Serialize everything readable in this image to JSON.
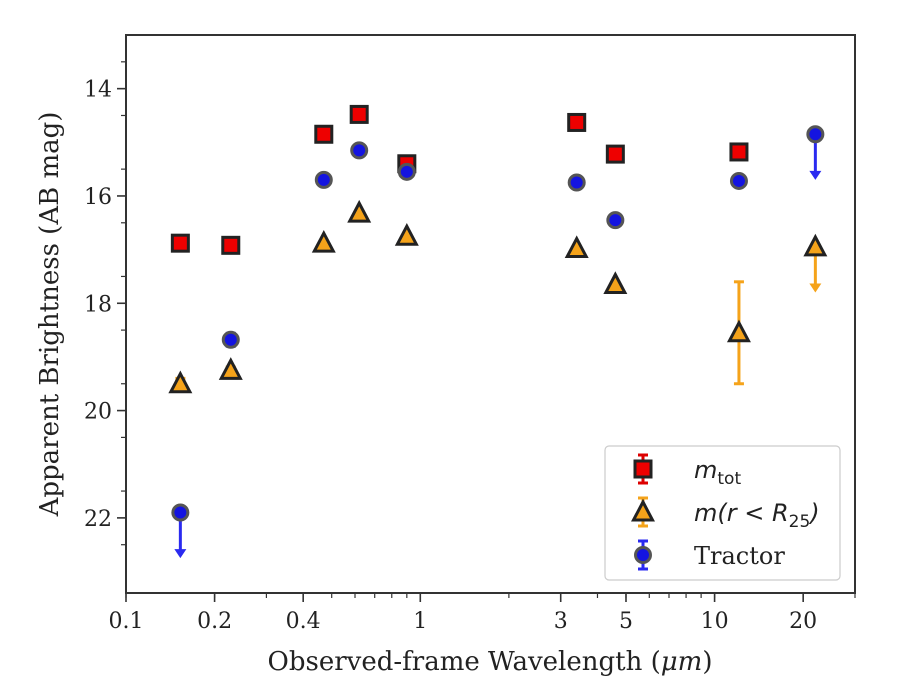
{
  "chart_data": {
    "type": "scatter",
    "xlabel_prefix": "Observed-frame Wavelength (",
    "xlabel_unit": "μm",
    "xlabel_suffix": ")",
    "ylabel": "Apparent Brightness (AB mag)",
    "x_scale": "log",
    "xlim": [
      0.1,
      30
    ],
    "ylim": [
      23.4,
      13
    ],
    "y_inverted": true,
    "x_ticks": [
      0.1,
      0.2,
      0.4,
      1,
      3,
      5,
      10,
      20
    ],
    "x_tick_labels": [
      "0.1",
      "0.2",
      "0.4",
      "1",
      "3",
      "5",
      "10",
      "20"
    ],
    "y_ticks": [
      14,
      16,
      18,
      20,
      22
    ],
    "y_tick_labels": [
      "14",
      "16",
      "18",
      "20",
      "22"
    ],
    "grid": false,
    "legend_position": "lower-right",
    "series": [
      {
        "key": "mtot",
        "label_main": "m",
        "label_sub": "tot",
        "label_tail": "",
        "marker": "square",
        "color": "#ee0000",
        "errcolor": "#dd0000",
        "points": [
          {
            "x": 0.153,
            "y": 16.88,
            "err": 0.06
          },
          {
            "x": 0.227,
            "y": 16.92,
            "err": 0.06
          },
          {
            "x": 0.47,
            "y": 14.85,
            "err": 0.03
          },
          {
            "x": 0.62,
            "y": 14.48,
            "err": 0.03
          },
          {
            "x": 0.9,
            "y": 15.4,
            "err": 0.08
          },
          {
            "x": 3.4,
            "y": 14.63,
            "err": 0.03
          },
          {
            "x": 4.6,
            "y": 15.22,
            "err": 0.03
          },
          {
            "x": 12.1,
            "y": 15.18,
            "err": 0.05
          }
        ]
      },
      {
        "key": "mr25",
        "label_main": "m(r < R",
        "label_sub": "25",
        "label_tail": ")",
        "marker": "triangle",
        "color": "#f5a31a",
        "errcolor": "#f5a31a",
        "points": [
          {
            "x": 0.153,
            "y": 19.5,
            "err": 0.1
          },
          {
            "x": 0.227,
            "y": 19.25,
            "err": 0.06
          },
          {
            "x": 0.47,
            "y": 16.88,
            "err": 0.03
          },
          {
            "x": 0.62,
            "y": 16.32,
            "err": 0.03
          },
          {
            "x": 0.9,
            "y": 16.75,
            "err": 0.03
          },
          {
            "x": 3.4,
            "y": 16.98,
            "err": 0.03
          },
          {
            "x": 4.6,
            "y": 17.65,
            "err": 0.03
          },
          {
            "x": 12.1,
            "y": 18.55,
            "err": 0.95
          },
          {
            "x": 22.0,
            "y": 16.95,
            "upper_limit": true,
            "limit_to": 17.8
          }
        ]
      },
      {
        "key": "tractor",
        "label_main": "Tractor",
        "label_sub": "",
        "label_tail": "",
        "marker": "circle",
        "color": "#1414e0",
        "errcolor": "#2a2af0",
        "points": [
          {
            "x": 0.153,
            "y": 21.9,
            "upper_limit": true,
            "limit_to": 22.75
          },
          {
            "x": 0.227,
            "y": 18.68,
            "err": 0.12
          },
          {
            "x": 0.47,
            "y": 15.7,
            "err": 0.05
          },
          {
            "x": 0.62,
            "y": 15.15,
            "err": 0.04
          },
          {
            "x": 0.9,
            "y": 15.55,
            "err": 0.1
          },
          {
            "x": 3.4,
            "y": 15.75,
            "err": 0.05
          },
          {
            "x": 4.6,
            "y": 16.45,
            "err": 0.08
          },
          {
            "x": 12.1,
            "y": 15.72,
            "err": 0.05
          },
          {
            "x": 22.0,
            "y": 14.85,
            "upper_limit": true,
            "limit_to": 15.7
          }
        ]
      }
    ]
  }
}
